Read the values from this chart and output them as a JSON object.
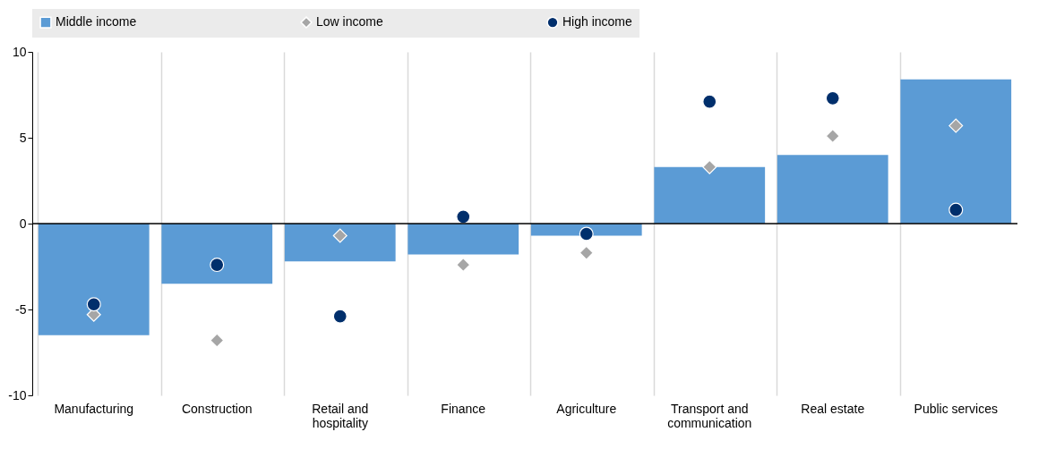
{
  "chart_data": {
    "type": "bar",
    "categories": [
      "Manufacturing",
      "Construction",
      "Retail and hospitality",
      "Finance",
      "Agriculture",
      "Transport and communication",
      "Real estate",
      "Public services"
    ],
    "series": [
      {
        "name": "Middle income",
        "color": "#5b9bd5",
        "values": [
          -6.5,
          -3.5,
          -2.2,
          -1.8,
          -0.7,
          3.3,
          4.0,
          8.4
        ]
      },
      {
        "name": "Low income",
        "type": "scatter",
        "marker": "diamond",
        "color": "#a6a6a6",
        "values": [
          -5.3,
          -6.8,
          -0.7,
          -2.4,
          -1.7,
          3.3,
          5.1,
          5.7
        ]
      },
      {
        "name": "High income",
        "type": "scatter",
        "marker": "circle",
        "color": "#002f6c",
        "values": [
          -4.7,
          -2.4,
          -5.4,
          0.4,
          -0.6,
          7.1,
          7.3,
          0.8
        ]
      }
    ],
    "ylim": [
      -10,
      10
    ],
    "yticks": [
      -10,
      -5,
      0,
      5,
      10
    ],
    "grid": "x",
    "legend": "top",
    "ref_lines": [
      {
        "axis": "y",
        "value": 0
      }
    ]
  }
}
